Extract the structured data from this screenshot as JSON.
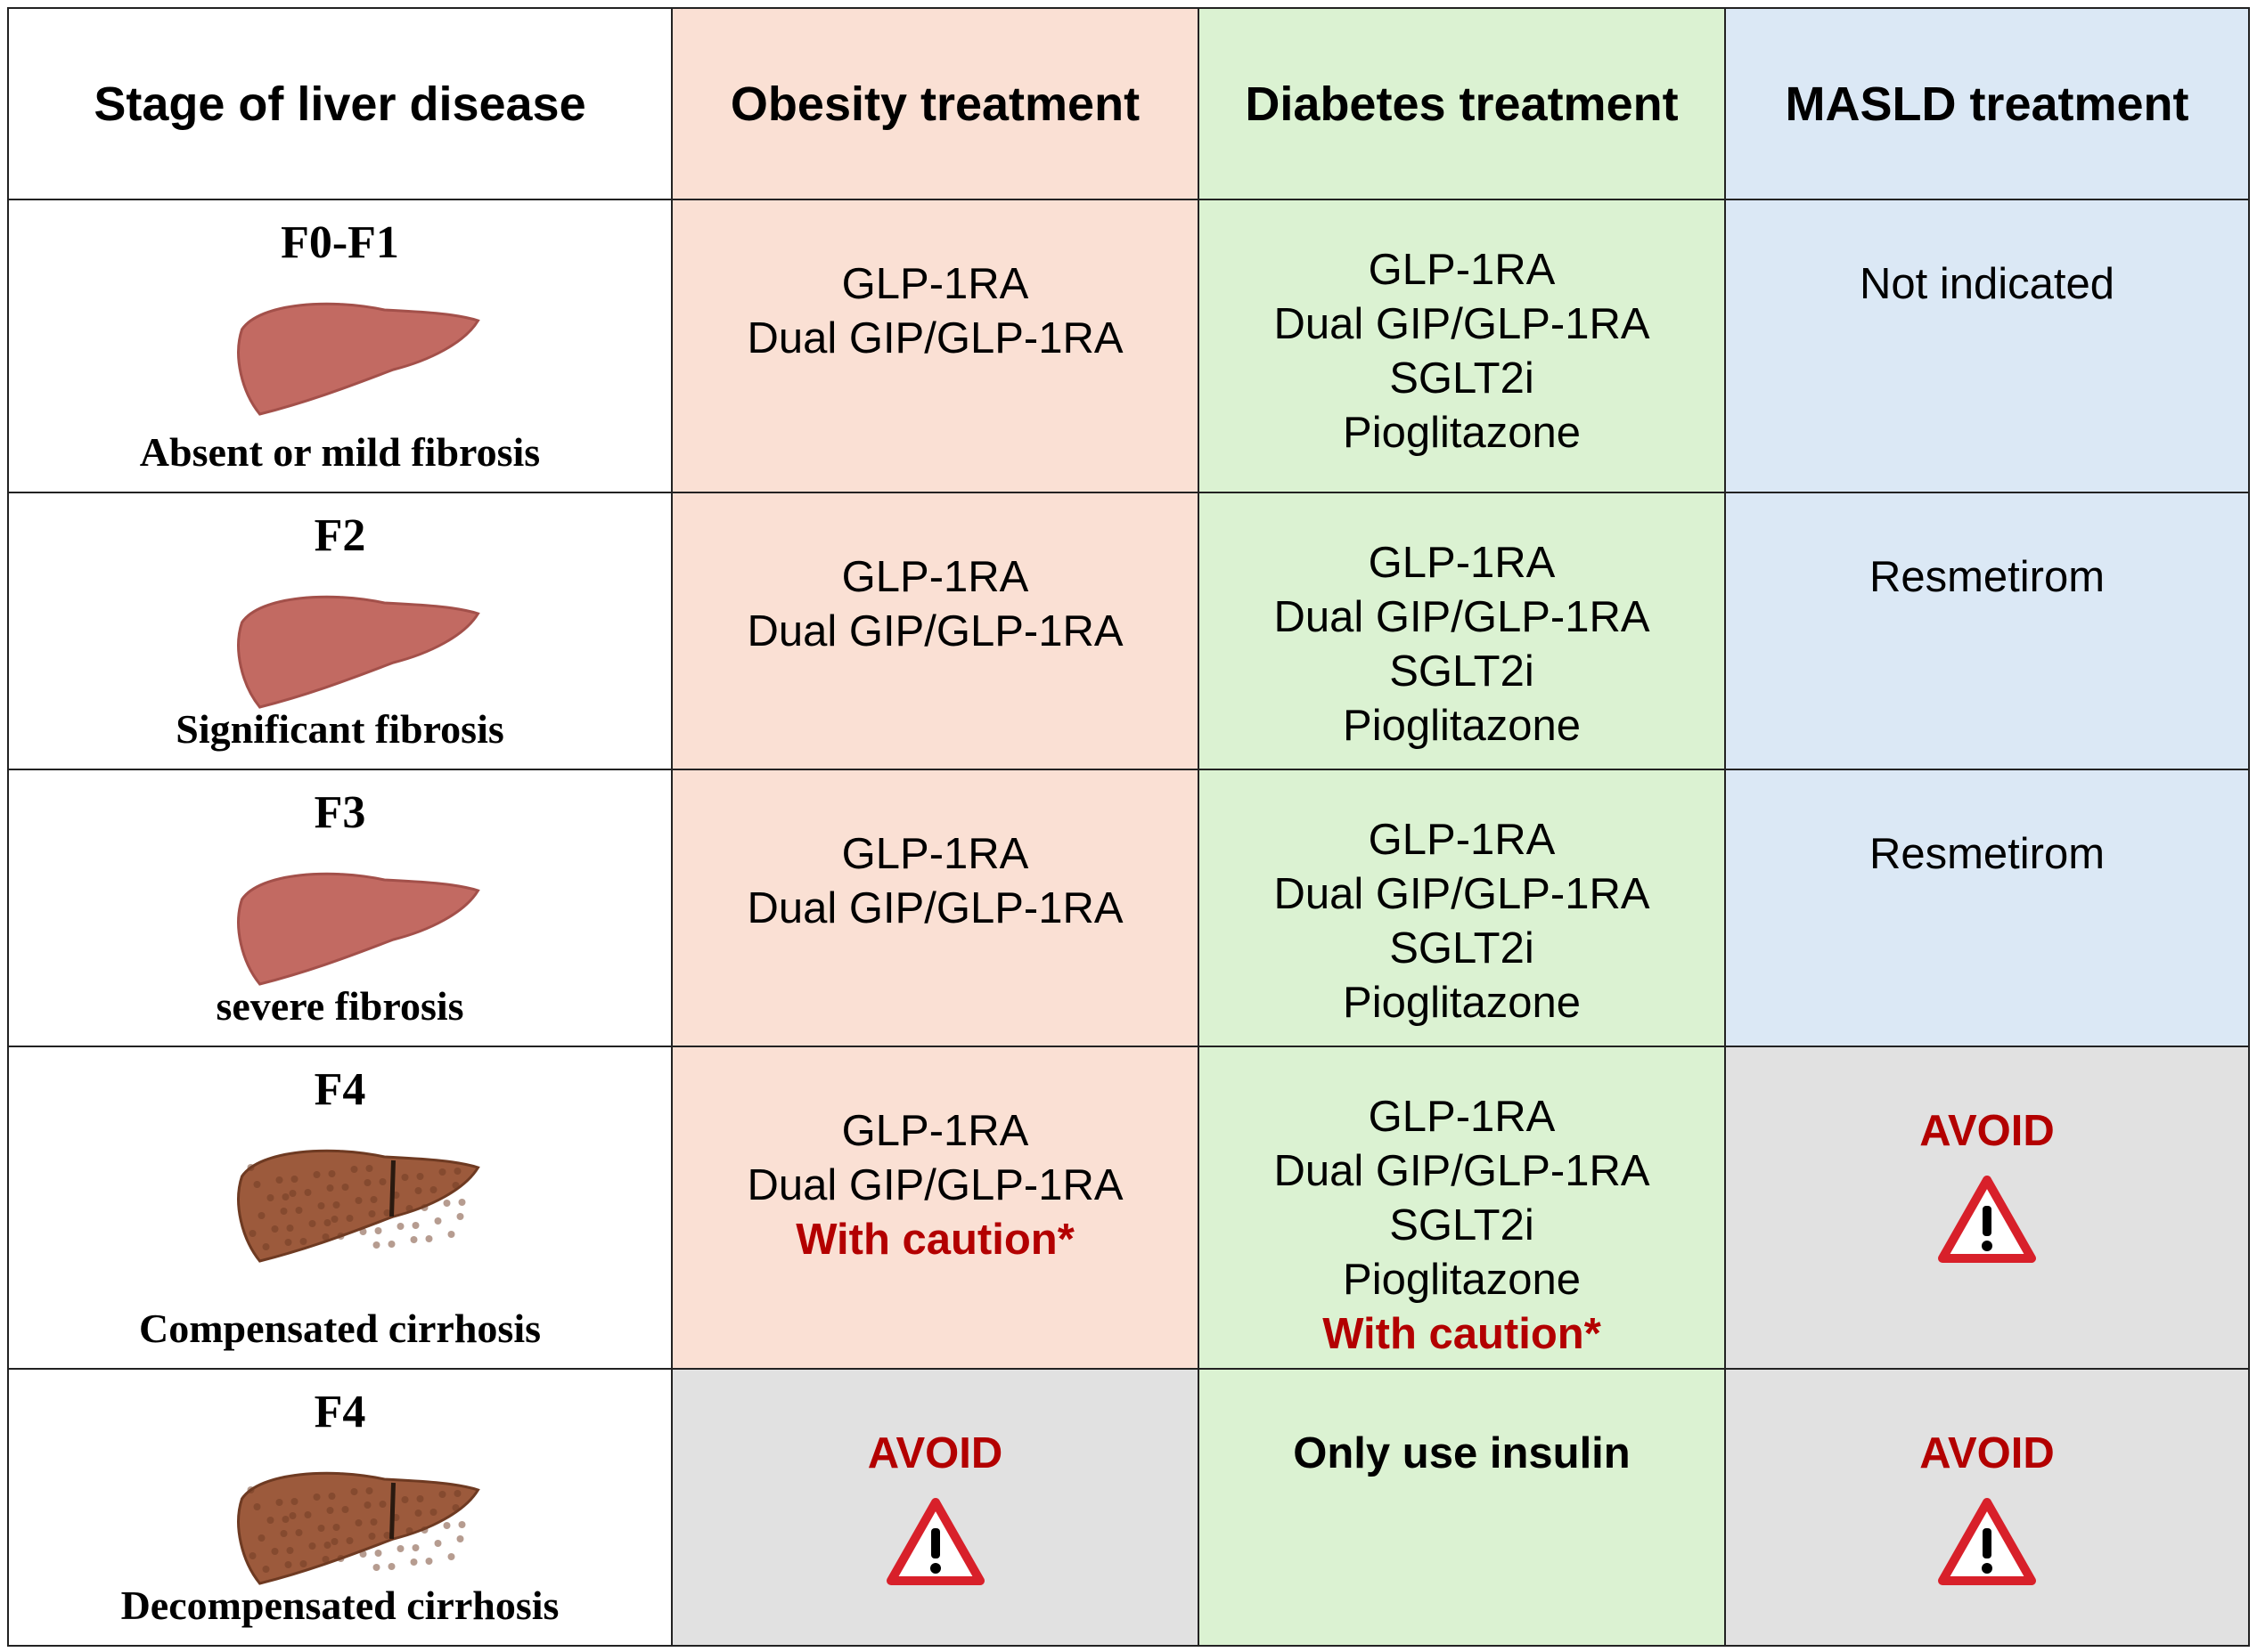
{
  "header": [
    "Stage of liver disease",
    "Obesity treatment",
    "Diabetes treatment",
    "MASLD treatment"
  ],
  "rows": [
    {
      "stage": "F0-F1",
      "description": "Absent or mild fibrosis",
      "cells": [
        {
          "lines": [
            "GLP-1RA",
            "Dual GIP/GLP-1RA"
          ]
        },
        {
          "lines": [
            "GLP-1RA",
            "Dual GIP/GLP-1RA",
            "SGLT2i",
            "Pioglitazone"
          ]
        },
        {
          "lines": [
            "Not indicated"
          ]
        }
      ]
    },
    {
      "stage": "F2",
      "description": "Significant fibrosis",
      "cells": [
        {
          "lines": [
            "GLP-1RA",
            "Dual GIP/GLP-1RA"
          ]
        },
        {
          "lines": [
            "GLP-1RA",
            "Dual GIP/GLP-1RA",
            "SGLT2i",
            "Pioglitazone"
          ]
        },
        {
          "lines": [
            "Resmetirom"
          ]
        }
      ]
    },
    {
      "stage": "F3",
      "description": "severe fibrosis",
      "cells": [
        {
          "lines": [
            "GLP-1RA",
            "Dual GIP/GLP-1RA"
          ]
        },
        {
          "lines": [
            "GLP-1RA",
            "Dual GIP/GLP-1RA",
            "SGLT2i",
            "Pioglitazone"
          ]
        },
        {
          "lines": [
            "Resmetirom"
          ]
        }
      ]
    },
    {
      "stage": "F4",
      "description": "Compensated cirrhosis",
      "cells": [
        {
          "lines": [
            "GLP-1RA",
            "Dual GIP/GLP-1RA"
          ],
          "caution": "With caution*"
        },
        {
          "lines": [
            "GLP-1RA",
            "Dual GIP/GLP-1RA",
            "SGLT2i",
            "Pioglitazone"
          ],
          "caution": "With caution*"
        },
        {
          "alert": "AVOID"
        }
      ]
    },
    {
      "stage": "F4",
      "description": "Decompensated cirrhosis",
      "cells": [
        {
          "alert": "AVOID"
        },
        {
          "emphasis": "Only use insulin"
        },
        {
          "alert": "AVOID"
        }
      ]
    }
  ]
}
